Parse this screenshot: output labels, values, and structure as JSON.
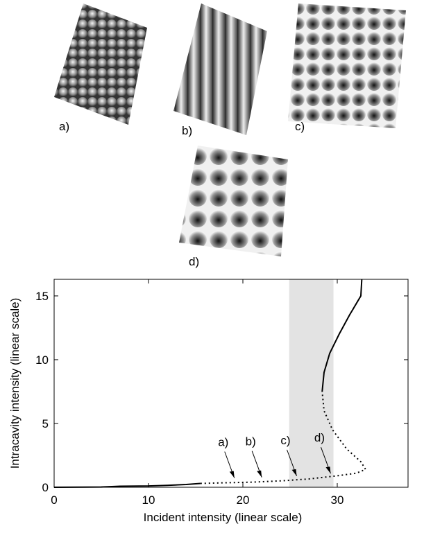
{
  "chart_data": {
    "type": "line",
    "panels": [
      "a)",
      "b)",
      "c)",
      "d)"
    ],
    "x_label": "Incident intensity (linear scale)",
    "y_label": "Intracavity intensity (linear scale)",
    "xlim": [
      0,
      37.5
    ],
    "ylim": [
      0,
      16.3
    ],
    "xticks": [
      0,
      10,
      20,
      30
    ],
    "yticks": [
      0,
      5,
      10,
      15
    ],
    "band": [
      24.9,
      29.6
    ],
    "band_color": "#e3e3e3",
    "series": [
      {
        "style": "solid",
        "color": "#000000",
        "x": [
          0,
          5,
          7,
          10,
          12,
          14,
          15.5
        ],
        "values": [
          0,
          0.02,
          0.08,
          0.1,
          0.15,
          0.22,
          0.3
        ]
      },
      {
        "style": "dotted",
        "color": "#000000",
        "x": [
          15.5,
          18,
          21,
          24,
          27,
          30,
          32,
          33,
          32.5,
          31,
          29.5,
          28.6,
          28.4
        ],
        "values": [
          0.3,
          0.35,
          0.4,
          0.5,
          0.65,
          0.9,
          1.1,
          1.4,
          2,
          3,
          4.5,
          6,
          7.5
        ]
      },
      {
        "style": "solid",
        "color": "#000000",
        "x": [
          28.4,
          28.6,
          29.2,
          30.2,
          31.3,
          32.5,
          32.6
        ],
        "values": [
          7.5,
          9,
          10.5,
          12,
          13.5,
          15,
          16.3
        ]
      }
    ],
    "annotations": [
      {
        "text": "a)",
        "x": 19.1,
        "y": 0.4
      },
      {
        "text": "b)",
        "x": 22,
        "y": 0.45
      },
      {
        "text": "c)",
        "x": 25.7,
        "y": 0.55
      },
      {
        "text": "d)",
        "x": 29.3,
        "y": 0.75
      }
    ]
  }
}
